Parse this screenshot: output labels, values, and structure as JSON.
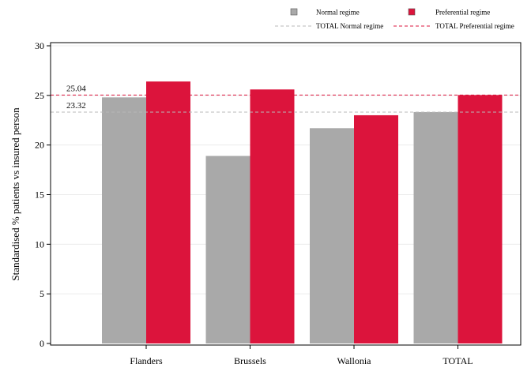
{
  "chart_data": {
    "type": "bar",
    "title": "",
    "xlabel": "",
    "ylabel": "Standardised % patients vs insured person",
    "categories": [
      "Flanders",
      "Brussels",
      "Wallonia",
      "TOTAL"
    ],
    "series": [
      {
        "name": "Normal regime",
        "values": [
          24.8,
          18.9,
          21.7,
          23.32
        ],
        "color": "#a9a9a9"
      },
      {
        "name": "Preferential regime",
        "values": [
          26.4,
          25.6,
          23.0,
          25.04
        ],
        "color": "#dc143c"
      }
    ],
    "reference_lines": [
      {
        "name": "TOTAL Normal regime",
        "value": 23.32,
        "label": "23.32",
        "color": "#b8b8b8",
        "style": "dashed"
      },
      {
        "name": "TOTAL Preferential regime",
        "value": 25.04,
        "label": "25.04",
        "color": "#dc143c",
        "style": "dashed"
      }
    ],
    "ylim": [
      0,
      30
    ],
    "yticks": [
      0,
      5,
      10,
      15,
      20,
      25,
      30
    ],
    "grid": true,
    "legend_position": "top"
  }
}
